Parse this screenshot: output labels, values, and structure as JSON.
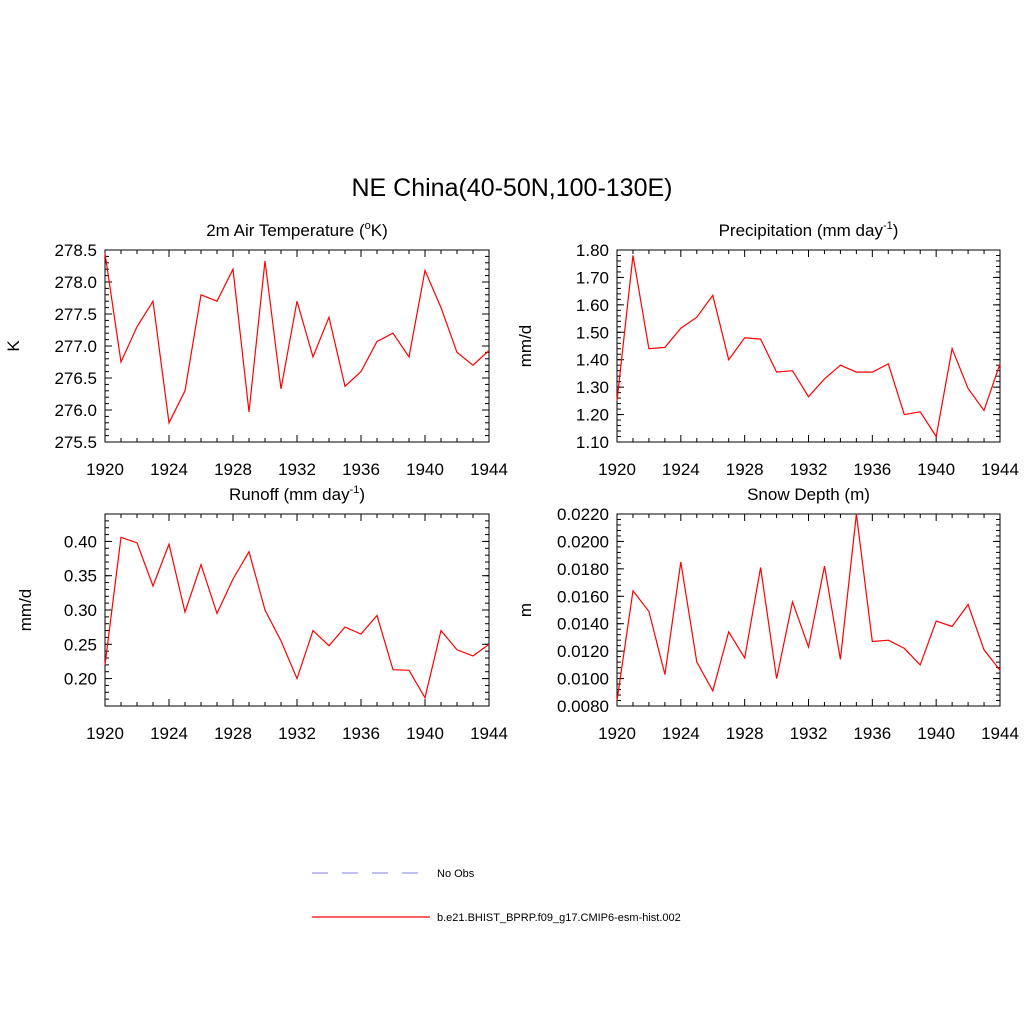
{
  "figure": {
    "title": "NE China(40-50N,100-130E)"
  },
  "legend": {
    "entries": [
      {
        "label": "No Obs",
        "style": "dashed",
        "color": "#9999ee"
      },
      {
        "label": "b.e21.BHIST_BPRP.f09_g17.CMIP6-esm-hist.002",
        "style": "solid",
        "color": "#ff0000"
      }
    ]
  },
  "chart_data": [
    {
      "type": "line",
      "title": "2m Air Temperature (",
      "title_sup": "o",
      "title_tail": "K)",
      "ylabel": "K",
      "xlim": [
        1920,
        1944
      ],
      "ylim": [
        275.5,
        278.5
      ],
      "xticks": [
        "1920",
        "1924",
        "1928",
        "1932",
        "1936",
        "1940",
        "1944"
      ],
      "yticks": [
        "275.5",
        "276.0",
        "276.5",
        "277.0",
        "277.5",
        "278.0",
        "278.5"
      ],
      "ytick_values": [
        275.5,
        276.0,
        276.5,
        277.0,
        277.5,
        278.0,
        278.5
      ],
      "x": [
        1920,
        1921,
        1922,
        1923,
        1924,
        1925,
        1926,
        1927,
        1928,
        1929,
        1930,
        1931,
        1932,
        1933,
        1934,
        1935,
        1936,
        1937,
        1938,
        1939,
        1940,
        1941,
        1942,
        1943,
        1944
      ],
      "series": [
        {
          "values": [
            278.45,
            276.75,
            277.3,
            277.7,
            275.8,
            276.3,
            277.8,
            277.7,
            278.2,
            275.97,
            278.33,
            276.33,
            277.7,
            276.83,
            277.45,
            276.37,
            276.6,
            277.07,
            277.2,
            276.83,
            278.18,
            277.6,
            276.9,
            276.7,
            276.93
          ],
          "color": "#ff0000"
        }
      ]
    },
    {
      "type": "line",
      "title": "Precipitation (mm day",
      "title_sup": "-1",
      "title_tail": ")",
      "ylabel": "mm/d",
      "xlim": [
        1920,
        1944
      ],
      "ylim": [
        1.1,
        1.8
      ],
      "xticks": [
        "1920",
        "1924",
        "1928",
        "1932",
        "1936",
        "1940",
        "1944"
      ],
      "yticks": [
        "1.10",
        "1.20",
        "1.30",
        "1.40",
        "1.50",
        "1.60",
        "1.70",
        "1.80"
      ],
      "ytick_values": [
        1.1,
        1.2,
        1.3,
        1.4,
        1.5,
        1.6,
        1.7,
        1.8
      ],
      "x": [
        1920,
        1921,
        1922,
        1923,
        1924,
        1925,
        1926,
        1927,
        1928,
        1929,
        1930,
        1931,
        1932,
        1933,
        1934,
        1935,
        1936,
        1937,
        1938,
        1939,
        1940,
        1941,
        1942,
        1943,
        1944
      ],
      "series": [
        {
          "values": [
            1.25,
            1.78,
            1.44,
            1.445,
            1.515,
            1.555,
            1.635,
            1.4,
            1.48,
            1.475,
            1.355,
            1.36,
            1.265,
            1.33,
            1.38,
            1.355,
            1.355,
            1.385,
            1.2,
            1.21,
            1.12,
            1.44,
            1.295,
            1.215,
            1.385
          ],
          "color": "#ff0000"
        }
      ]
    },
    {
      "type": "line",
      "title": "Runoff (mm day",
      "title_sup": "-1",
      "title_tail": ")",
      "ylabel": "mm/d",
      "xlim": [
        1920,
        1944
      ],
      "ylim": [
        0.16,
        0.44
      ],
      "xticks": [
        "1920",
        "1924",
        "1928",
        "1932",
        "1936",
        "1940",
        "1944"
      ],
      "yticks": [
        "0.20",
        "0.25",
        "0.30",
        "0.35",
        "0.40"
      ],
      "ytick_values": [
        0.2,
        0.25,
        0.3,
        0.35,
        0.4
      ],
      "x": [
        1920,
        1921,
        1922,
        1923,
        1924,
        1925,
        1926,
        1927,
        1928,
        1929,
        1930,
        1931,
        1932,
        1933,
        1934,
        1935,
        1936,
        1937,
        1938,
        1939,
        1940,
        1941,
        1942,
        1943,
        1944
      ],
      "series": [
        {
          "values": [
            0.22,
            0.406,
            0.398,
            0.335,
            0.396,
            0.297,
            0.366,
            0.295,
            0.345,
            0.385,
            0.3,
            0.255,
            0.2,
            0.27,
            0.248,
            0.275,
            0.265,
            0.292,
            0.213,
            0.212,
            0.172,
            0.27,
            0.242,
            0.233,
            0.25
          ],
          "color": "#ff0000"
        }
      ]
    },
    {
      "type": "line",
      "title": "Snow Depth (m)",
      "title_sup": "",
      "title_tail": "",
      "ylabel": "m",
      "xlim": [
        1920,
        1944
      ],
      "ylim": [
        0.008,
        0.022
      ],
      "xticks": [
        "1920",
        "1924",
        "1928",
        "1932",
        "1936",
        "1940",
        "1944"
      ],
      "yticks": [
        "0.0080",
        "0.0100",
        "0.0120",
        "0.0140",
        "0.0160",
        "0.0180",
        "0.0200",
        "0.0220"
      ],
      "ytick_values": [
        0.008,
        0.01,
        0.012,
        0.014,
        0.016,
        0.018,
        0.02,
        0.022
      ],
      "x": [
        1920,
        1921,
        1922,
        1923,
        1924,
        1925,
        1926,
        1927,
        1928,
        1929,
        1930,
        1931,
        1932,
        1933,
        1934,
        1935,
        1936,
        1937,
        1938,
        1939,
        1940,
        1941,
        1942,
        1943,
        1944
      ],
      "series": [
        {
          "values": [
            0.0084,
            0.0164,
            0.0149,
            0.0103,
            0.0185,
            0.0112,
            0.0091,
            0.0134,
            0.0115,
            0.0181,
            0.01,
            0.0156,
            0.0123,
            0.0182,
            0.0114,
            0.022,
            0.0127,
            0.0128,
            0.0122,
            0.011,
            0.0142,
            0.0138,
            0.0154,
            0.0121,
            0.0106
          ],
          "color": "#ff0000"
        }
      ]
    }
  ]
}
